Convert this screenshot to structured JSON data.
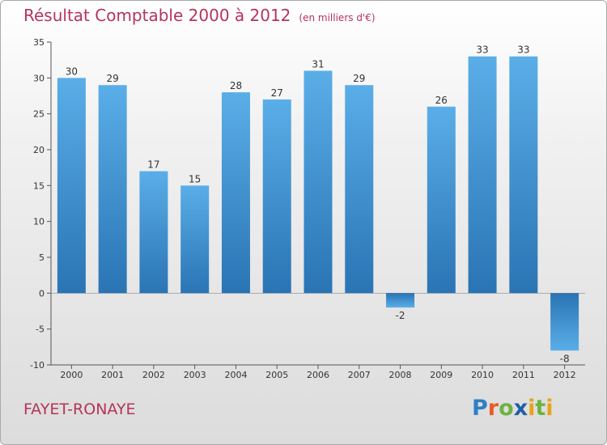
{
  "chart_data": {
    "type": "bar",
    "title": "Résultat Comptable 2000 à 2012",
    "subtitle": "(en milliers d'€)",
    "categories": [
      "2000",
      "2001",
      "2002",
      "2003",
      "2004",
      "2005",
      "2006",
      "2007",
      "2008",
      "2009",
      "2010",
      "2011",
      "2012"
    ],
    "values": [
      30,
      29,
      17,
      15,
      28,
      27,
      31,
      29,
      -2,
      26,
      33,
      33,
      -8
    ],
    "ylim": [
      -10,
      35
    ],
    "yticks": [
      -10,
      -5,
      0,
      5,
      10,
      15,
      20,
      25,
      30,
      35
    ],
    "xlabel": "",
    "ylabel": "",
    "grid": false,
    "bar_color": "#3a8fd0"
  },
  "footer": {
    "commune": "FAYET-RONAYE",
    "logo": {
      "p": "P",
      "r": "r",
      "o": "o",
      "x": "x",
      "i": "i",
      "t": "t",
      "i2": "i"
    }
  }
}
